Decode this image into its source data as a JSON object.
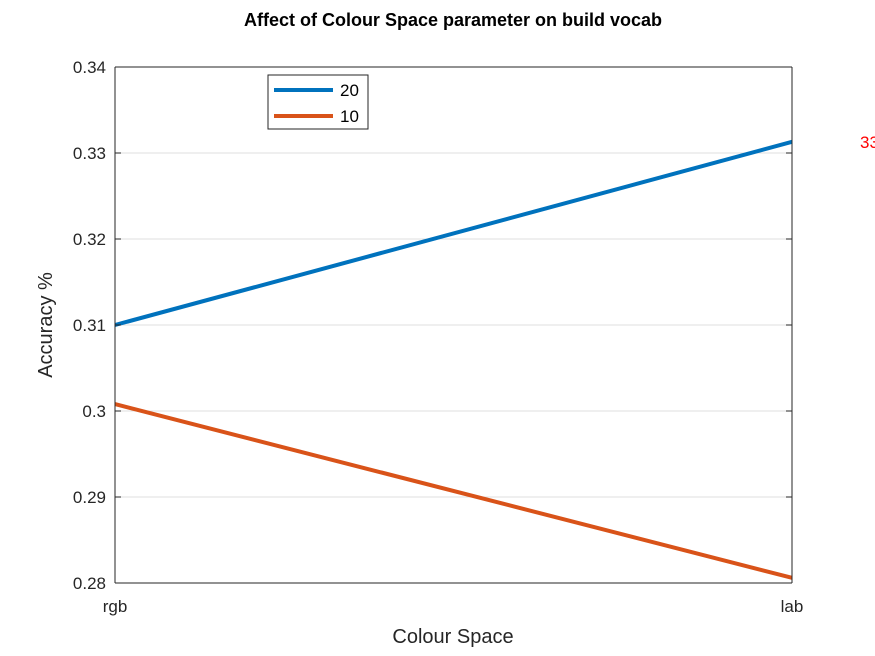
{
  "chart_data": {
    "type": "line",
    "title": "Affect of Colour Space parameter on build vocab",
    "xlabel": "Colour Space",
    "ylabel": "Accuracy %",
    "categories": [
      "rgb",
      "lab"
    ],
    "ylim": [
      0.28,
      0.34
    ],
    "yticks": [
      0.28,
      0.29,
      0.3,
      0.31,
      0.32,
      0.33,
      0.34
    ],
    "ytick_labels": [
      "0.28",
      "0.29",
      "0.3",
      "0.31",
      "0.32",
      "0.33",
      "0.34"
    ],
    "grid": "horizontal",
    "legend_position": "top-left",
    "series": [
      {
        "name": "20",
        "values": [
          0.31,
          0.3313
        ],
        "color": "#0072BD"
      },
      {
        "name": "10",
        "values": [
          0.3008,
          0.2806
        ],
        "color": "#D95319"
      }
    ],
    "annotation": {
      "text": "33",
      "color": "#ff0000"
    }
  }
}
